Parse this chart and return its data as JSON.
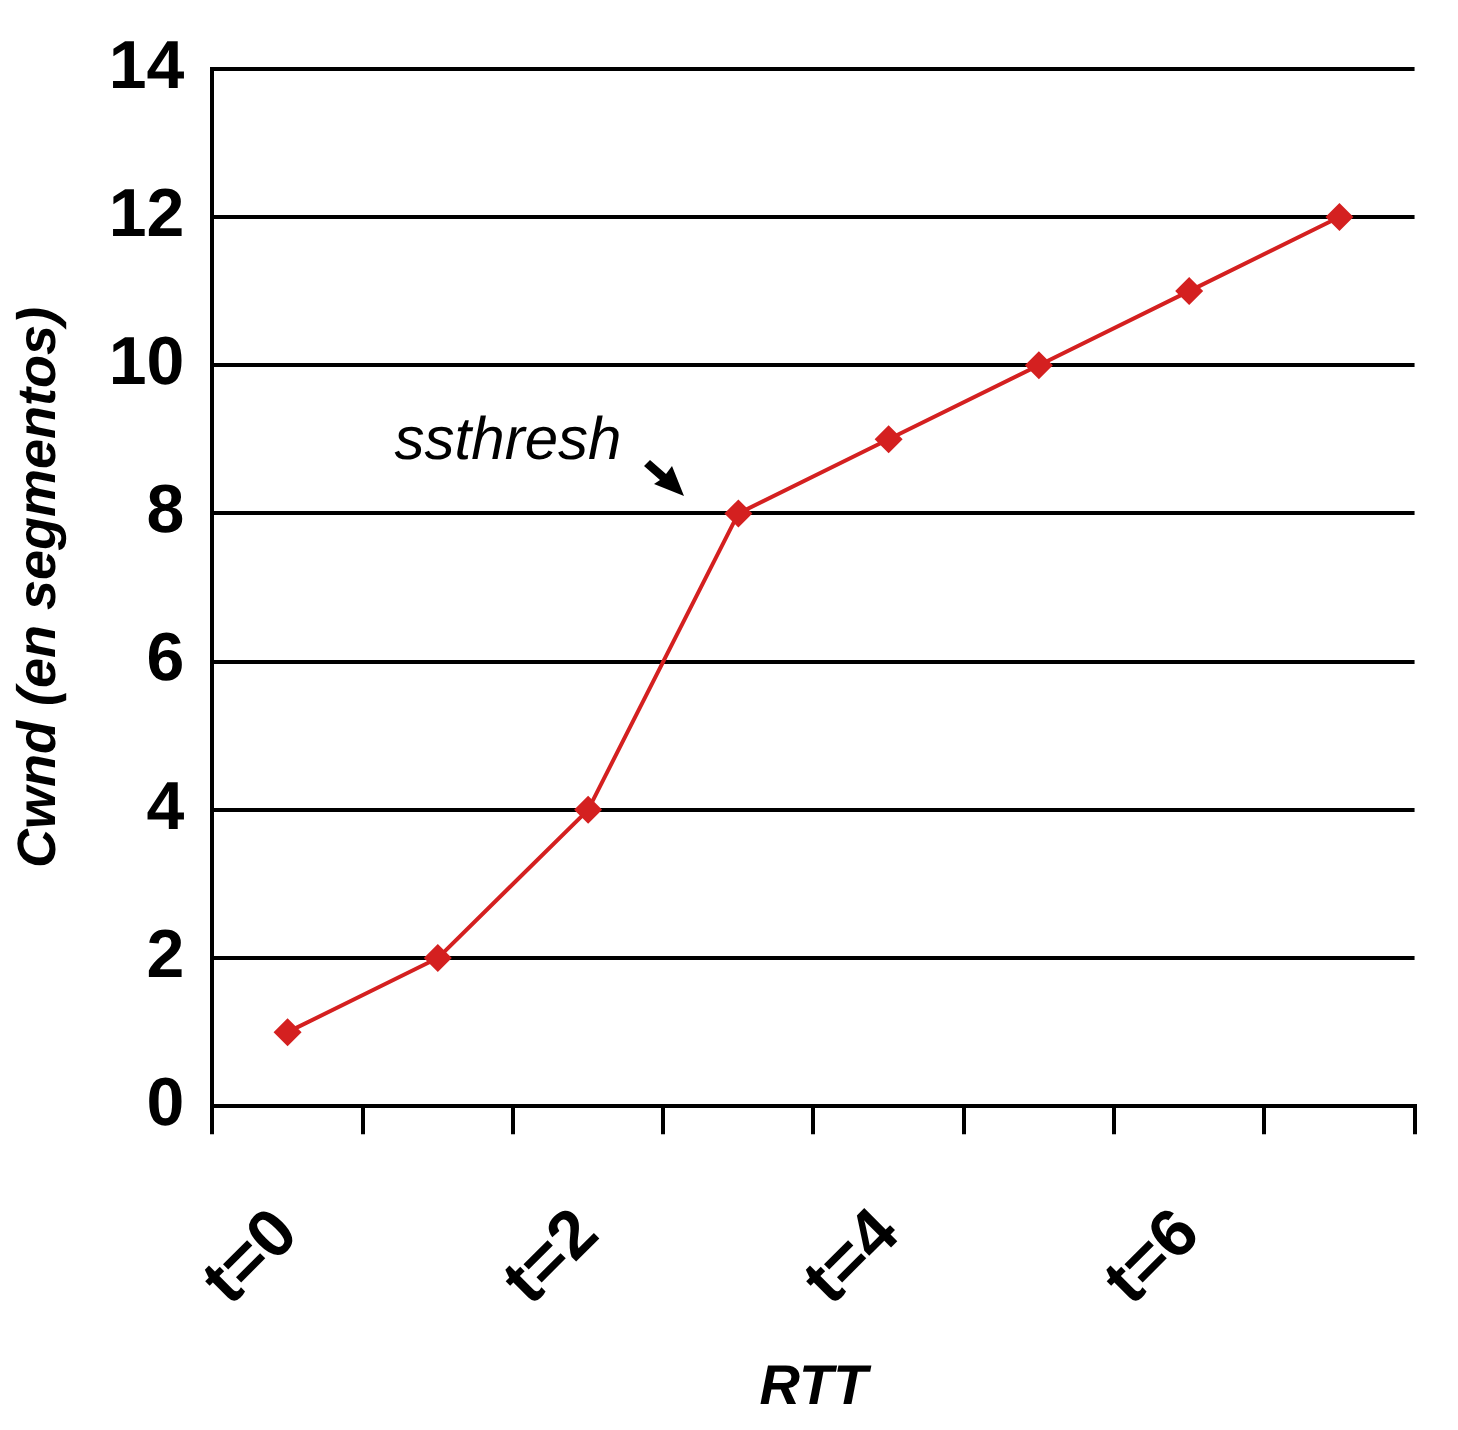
{
  "chart_data": {
    "type": "line",
    "xlabel": "RTT",
    "ylabel": "Cwnd (en segmentos)",
    "categories": [
      "t=0",
      null,
      "t=2",
      null,
      "t=4",
      null,
      "t=6",
      null
    ],
    "series": [
      {
        "color": "#d42020",
        "values": [
          1,
          2,
          4,
          8,
          9,
          10,
          11,
          12
        ]
      }
    ],
    "ylim": [
      0,
      14
    ],
    "yticks": [
      0,
      2,
      4,
      6,
      8,
      10,
      12,
      14
    ],
    "grid": "y",
    "legend": false,
    "marker": "diamond",
    "line_style": "solid",
    "annotations": [
      "ssthresh"
    ]
  }
}
